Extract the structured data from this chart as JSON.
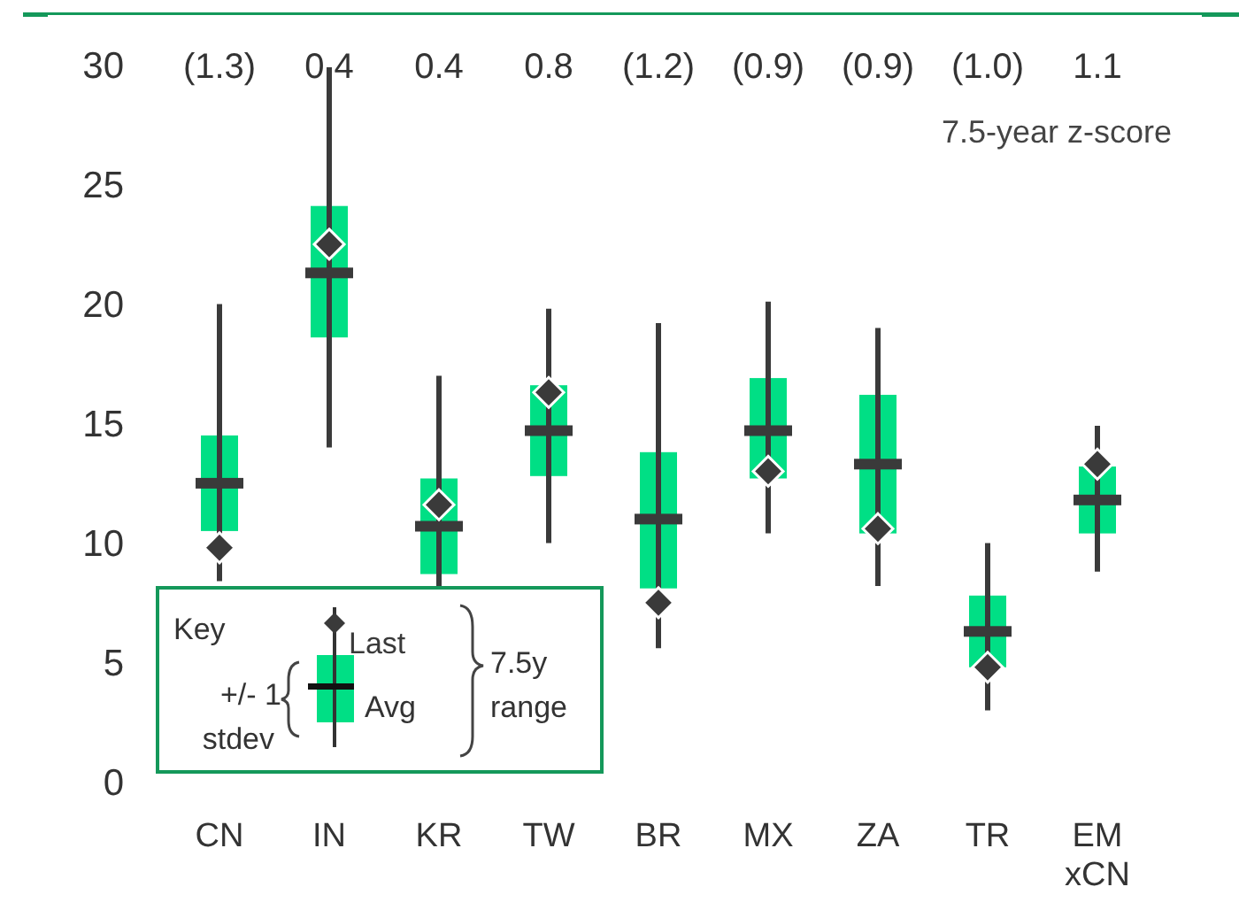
{
  "chart_data": {
    "type": "box",
    "categories": [
      "CN",
      "IN",
      "KR",
      "TW",
      "BR",
      "MX",
      "ZA",
      "TR",
      "EM xCN"
    ],
    "series": [
      {
        "name": "Avg",
        "color": "#00df85",
        "boxes": [
          {
            "low": 8.4,
            "q1": 10.5,
            "median": 12.5,
            "q3": 14.5,
            "high": 20.0
          },
          {
            "low": 14.0,
            "q1": 18.6,
            "median": 21.3,
            "q3": 24.1,
            "high": 29.9
          },
          {
            "low": 7.0,
            "q1": 8.7,
            "median": 10.7,
            "q3": 12.7,
            "high": 17.0
          },
          {
            "low": 10.0,
            "q1": 12.8,
            "median": 14.7,
            "q3": 16.6,
            "high": 19.8
          },
          {
            "low": 5.6,
            "q1": 8.1,
            "median": 11.0,
            "q3": 13.8,
            "high": 19.2
          },
          {
            "low": 10.4,
            "q1": 12.7,
            "median": 14.7,
            "q3": 16.9,
            "high": 20.1
          },
          {
            "low": 8.2,
            "q1": 10.4,
            "median": 13.3,
            "q3": 16.2,
            "high": 19.0
          },
          {
            "low": 3.0,
            "q1": 4.8,
            "median": 6.3,
            "q3": 7.8,
            "high": 10.0
          },
          {
            "low": 8.8,
            "q1": 10.4,
            "median": 11.8,
            "q3": 13.2,
            "high": 14.9
          }
        ]
      },
      {
        "type": "scatter",
        "name": "Last",
        "color": "#3a3a3a",
        "x": [
          "CN",
          "IN",
          "KR",
          "TW",
          "BR",
          "MX",
          "ZA",
          "TR",
          "EM xCN"
        ],
        "values": [
          9.8,
          22.5,
          11.6,
          16.3,
          7.5,
          13.0,
          10.6,
          4.8,
          13.3
        ]
      }
    ],
    "marker": "diamond",
    "ylim": [
      0,
      30
    ],
    "yticks": [
      0,
      5,
      10,
      15,
      20,
      25,
      30
    ],
    "legend": "bottom left",
    "annotations": [
      "(1.3)",
      "0.4",
      "0.4",
      "0.8",
      "(1.2)",
      "(0.9)",
      "(0.9)",
      "(1.0)",
      "1.1",
      "7.5-year z-score",
      "Key",
      "+/- 1 stdev",
      "7.5y range"
    ]
  }
}
